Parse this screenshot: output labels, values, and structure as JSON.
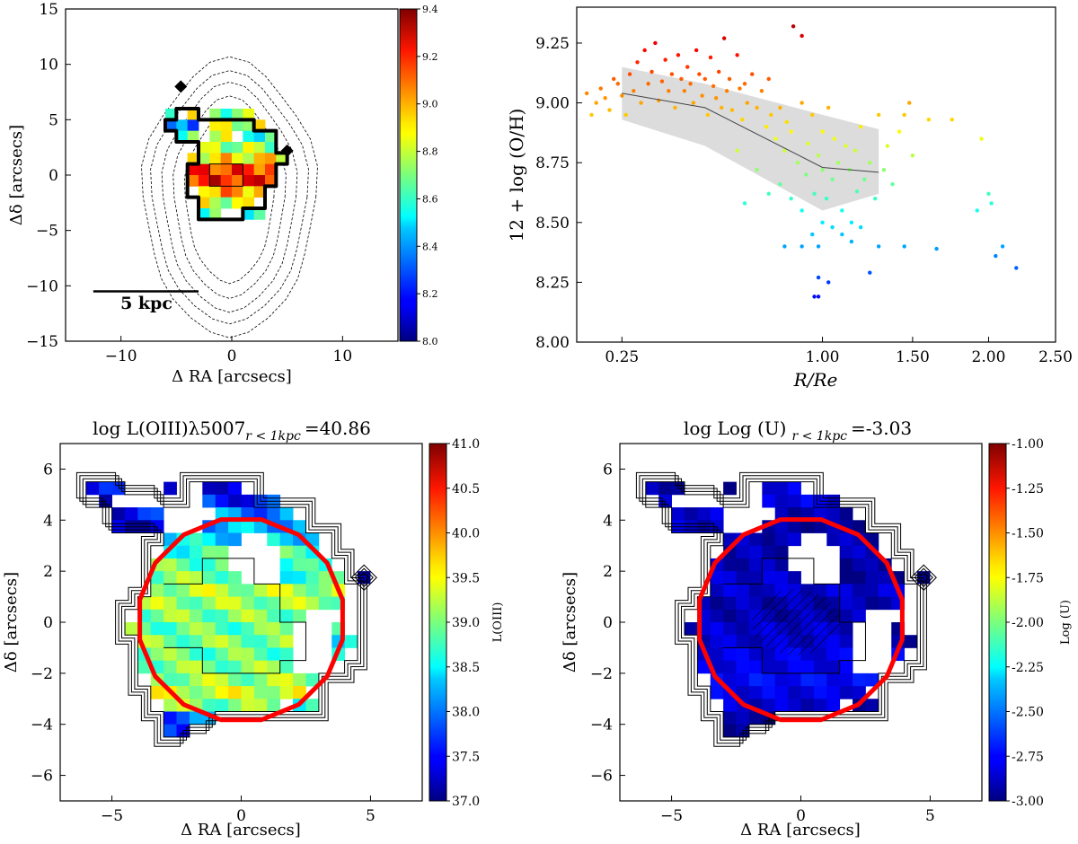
{
  "panels": {
    "map_oh": {
      "ylabel": "Δδ [arcsecs]",
      "xlabel": "Δ RA [arcsecs]",
      "scalebar_label": "5 kpc",
      "colorbar_ticks": [
        "8.0",
        "8.2",
        "8.4",
        "8.6",
        "8.8",
        "9.0",
        "9.2",
        "9.4"
      ]
    },
    "scatter": {
      "ylabel": "12 + log (O/H)",
      "xlabel": "R/Re"
    },
    "map_oiii": {
      "title": "log  L(OIII)λ5007",
      "title_subscript": "r < 1kpc",
      "title_value": "=40.86",
      "ylabel": "Δδ [arcsecs]",
      "xlabel": "Δ RA [arcsecs]",
      "colorbar_label": "L(OIII)",
      "colorbar_ticks": [
        "37.0",
        "37.5",
        "38.0",
        "38.5",
        "39.0",
        "39.5",
        "40.0",
        "40.5",
        "41.0"
      ]
    },
    "map_u": {
      "title": "log  Log (U)",
      "title_subscript": "r < 1kpc",
      "title_value": "=-3.03",
      "ylabel": "Δδ [arcsecs]",
      "xlabel": "Δ RA [arcsecs]",
      "colorbar_label": "Log (U)",
      "colorbar_ticks": [
        "-3.00",
        "-2.75",
        "-2.50",
        "-2.25",
        "-2.00",
        "-1.75",
        "-1.50",
        "-1.25",
        "-1.00"
      ]
    }
  },
  "chart_data": [
    {
      "type": "heatmap",
      "panel": "map_oh",
      "xlabel": "Δ RA [arcsecs]",
      "ylabel": "Δδ [arcsecs]",
      "xlim": [
        -15,
        15
      ],
      "ylim": [
        -15,
        15
      ],
      "xticks": [
        -10,
        0,
        10
      ],
      "yticks": [
        -15,
        -10,
        -5,
        0,
        5,
        10,
        15
      ],
      "colormap": "jet",
      "clim": [
        8.0,
        9.4
      ],
      "scalebar": {
        "x": [
          -12.5,
          -3
        ],
        "y": -10.5,
        "label": "5 kpc"
      },
      "map_rows": [
        {
          "y": 5.5,
          "segments": [
            [
              -6,
              -5,
              8.5
            ],
            [
              -4,
              -3,
              9.0
            ],
            [
              -2,
              2,
              8.7
            ]
          ]
        },
        {
          "y": 4.5,
          "segments": [
            [
              -6,
              -3,
              8.3
            ],
            [
              -2,
              3,
              8.8
            ]
          ]
        },
        {
          "y": 3.5,
          "segments": [
            [
              -5,
              -3,
              8.6
            ],
            [
              -2,
              0,
              8.9
            ],
            [
              1,
              4,
              8.6
            ]
          ]
        },
        {
          "y": 2.5,
          "segments": [
            [
              -3,
              4,
              8.75
            ]
          ]
        },
        {
          "y": 1.5,
          "segments": [
            [
              -4,
              5,
              8.9
            ]
          ]
        },
        {
          "y": 0.5,
          "segments": [
            [
              -4,
              4,
              9.15
            ]
          ]
        },
        {
          "y": -0.5,
          "segments": [
            [
              -4,
              4,
              9.2
            ]
          ]
        },
        {
          "y": -1.5,
          "segments": [
            [
              -3,
              3,
              9.0
            ]
          ]
        },
        {
          "y": -2.5,
          "segments": [
            [
              -3,
              2,
              8.8
            ]
          ]
        },
        {
          "y": -3.5,
          "segments": [
            [
              -3,
              -1,
              8.6
            ],
            [
              1,
              3,
              8.5
            ]
          ]
        }
      ],
      "dashed_contour_half_widths": [
        [
          4.0,
          7.5
        ],
        [
          5.0,
          8.8
        ],
        [
          6.0,
          10.0
        ],
        [
          7.0,
          11.0
        ],
        [
          7.8,
          12.2
        ]
      ]
    },
    {
      "type": "scatter",
      "panel": "scatter",
      "xlabel": "R/Re",
      "ylabel": "12 + log (O/H)",
      "xscale": "sqrt",
      "xlim": [
        0.15,
        2.5
      ],
      "ylim": [
        8.0,
        9.4
      ],
      "xticks": [
        0.25,
        1.0,
        1.5,
        2.0,
        2.5
      ],
      "xtick_labels": [
        "0.25",
        "1.00",
        "1.50",
        "2.00",
        "2.50"
      ],
      "yticks": [
        8.0,
        8.25,
        8.5,
        8.75,
        9.0,
        9.25
      ],
      "ytick_labels": [
        "8.00",
        "8.25",
        "8.50",
        "8.75",
        "9.00",
        "9.25"
      ],
      "colormap": "jet",
      "clim": [
        8.0,
        9.4
      ],
      "points": [
        [
          0.17,
          9.04
        ],
        [
          0.18,
          8.95
        ],
        [
          0.19,
          9.0
        ],
        [
          0.2,
          9.06
        ],
        [
          0.21,
          9.02
        ],
        [
          0.22,
          8.97
        ],
        [
          0.23,
          9.1
        ],
        [
          0.24,
          9.08
        ],
        [
          0.25,
          9.03
        ],
        [
          0.26,
          8.95
        ],
        [
          0.27,
          9.12
        ],
        [
          0.28,
          9.05
        ],
        [
          0.29,
          9.17
        ],
        [
          0.3,
          9.0
        ],
        [
          0.31,
          9.22
        ],
        [
          0.32,
          9.08
        ],
        [
          0.33,
          9.13
        ],
        [
          0.34,
          9.25
        ],
        [
          0.35,
          9.01
        ],
        [
          0.36,
          9.09
        ],
        [
          0.37,
          9.18
        ],
        [
          0.38,
          9.05
        ],
        [
          0.39,
          9.12
        ],
        [
          0.4,
          8.98
        ],
        [
          0.41,
          9.2
        ],
        [
          0.42,
          9.1
        ],
        [
          0.43,
          9.05
        ],
        [
          0.44,
          9.15
        ],
        [
          0.45,
          9.08
        ],
        [
          0.46,
          9.0
        ],
        [
          0.47,
          9.22
        ],
        [
          0.48,
          9.12
        ],
        [
          0.49,
          9.03
        ],
        [
          0.5,
          9.1
        ],
        [
          0.51,
          8.95
        ],
        [
          0.52,
          9.19
        ],
        [
          0.53,
          9.07
        ],
        [
          0.54,
          9.02
        ],
        [
          0.55,
          9.13
        ],
        [
          0.56,
          8.98
        ],
        [
          0.57,
          9.27
        ],
        [
          0.58,
          9.05
        ],
        [
          0.59,
          9.1
        ],
        [
          0.6,
          8.97
        ],
        [
          0.62,
          9.2
        ],
        [
          0.63,
          9.06
        ],
        [
          0.64,
          8.93
        ],
        [
          0.65,
          9.08
        ],
        [
          0.66,
          9.0
        ],
        [
          0.68,
          9.12
        ],
        [
          0.7,
          8.98
        ],
        [
          0.72,
          9.05
        ],
        [
          0.74,
          8.9
        ],
        [
          0.75,
          9.1
        ],
        [
          0.76,
          8.95
        ],
        [
          0.78,
          8.85
        ],
        [
          0.8,
          8.98
        ],
        [
          0.82,
          8.8
        ],
        [
          0.83,
          8.92
        ],
        [
          0.85,
          8.88
        ],
        [
          0.86,
          9.32
        ],
        [
          0.88,
          8.75
        ],
        [
          0.9,
          9.0
        ],
        [
          0.9,
          9.28
        ],
        [
          0.92,
          8.7
        ],
        [
          0.93,
          8.83
        ],
        [
          0.95,
          8.95
        ],
        [
          0.96,
          8.62
        ],
        [
          0.98,
          8.78
        ],
        [
          1.0,
          8.72
        ],
        [
          1.0,
          8.88
        ],
        [
          1.02,
          8.6
        ],
        [
          1.03,
          8.98
        ],
        [
          1.05,
          8.68
        ],
        [
          1.06,
          8.85
        ],
        [
          1.08,
          8.75
        ],
        [
          1.1,
          8.55
        ],
        [
          1.12,
          8.82
        ],
        [
          1.14,
          8.72
        ],
        [
          1.15,
          8.5
        ],
        [
          1.17,
          8.8
        ],
        [
          1.18,
          8.63
        ],
        [
          1.2,
          8.9
        ],
        [
          1.22,
          8.68
        ],
        [
          1.25,
          8.75
        ],
        [
          1.28,
          8.6
        ],
        [
          1.3,
          8.95
        ],
        [
          1.33,
          8.72
        ],
        [
          1.35,
          8.82
        ],
        [
          1.38,
          8.66
        ],
        [
          1.42,
          8.88
        ],
        [
          1.45,
          8.95
        ],
        [
          1.48,
          9.0
        ],
        [
          1.5,
          8.78
        ],
        [
          1.6,
          8.93
        ],
        [
          1.75,
          8.93
        ],
        [
          1.95,
          8.85
        ],
        [
          0.62,
          8.8
        ],
        [
          0.65,
          8.58
        ],
        [
          0.7,
          8.72
        ],
        [
          0.75,
          8.62
        ],
        [
          0.8,
          8.66
        ],
        [
          0.85,
          8.6
        ],
        [
          0.9,
          8.55
        ],
        [
          0.95,
          8.45
        ],
        [
          1.0,
          8.5
        ],
        [
          1.05,
          8.48
        ],
        [
          1.1,
          8.45
        ],
        [
          1.15,
          8.42
        ],
        [
          1.2,
          8.48
        ],
        [
          0.82,
          8.4
        ],
        [
          0.9,
          8.4
        ],
        [
          0.98,
          8.4
        ],
        [
          1.3,
          8.4
        ],
        [
          1.45,
          8.4
        ],
        [
          1.65,
          8.39
        ],
        [
          1.92,
          8.55
        ],
        [
          2.0,
          8.62
        ],
        [
          2.02,
          8.58
        ],
        [
          2.1,
          8.4
        ],
        [
          2.05,
          8.36
        ],
        [
          2.2,
          8.31
        ],
        [
          1.25,
          8.29
        ],
        [
          0.98,
          8.27
        ],
        [
          1.03,
          8.25
        ],
        [
          0.96,
          8.19
        ],
        [
          0.98,
          8.19
        ]
      ],
      "median_line": {
        "x": [
          0.25,
          0.5,
          1.0,
          1.3
        ],
        "y": [
          9.04,
          8.98,
          8.73,
          8.71
        ]
      },
      "band": {
        "x": [
          0.25,
          0.5,
          1.0,
          1.3
        ],
        "lower": [
          8.93,
          8.82,
          8.55,
          8.62
        ],
        "upper": [
          9.15,
          9.08,
          8.95,
          8.89
        ]
      }
    },
    {
      "type": "heatmap",
      "panel": "map_oiii",
      "title": "log  L(OIII)λ5007 r < 1kpc =40.86",
      "xlabel": "Δ RA [arcsecs]",
      "ylabel": "Δδ [arcsecs]",
      "colorbar_label": "L(OIII)",
      "xlim": [
        -7,
        7
      ],
      "ylim": [
        -7,
        7
      ],
      "xticks": [
        -5,
        0,
        5
      ],
      "yticks": [
        -6,
        -4,
        -2,
        0,
        2,
        4,
        6
      ],
      "colormap": "jet",
      "clim": [
        37.0,
        41.0
      ],
      "value_field": "oiii"
    },
    {
      "type": "heatmap",
      "panel": "map_u",
      "title": "log  Log (U) r < 1kpc =-3.03",
      "xlabel": "Δ RA [arcsecs]",
      "ylabel": "Δδ [arcsecs]",
      "colorbar_label": "Log (U)",
      "xlim": [
        -7,
        7
      ],
      "ylim": [
        -7,
        7
      ],
      "xticks": [
        -5,
        0,
        5
      ],
      "yticks": [
        -6,
        -4,
        -2,
        0,
        2,
        4,
        6
      ],
      "colormap": "jet",
      "clim": [
        -3.0,
        -1.0
      ],
      "value_field": "logu"
    }
  ],
  "pixel_map": {
    "cell_size_arcsec": 0.5,
    "rows": [
      {
        "y": 5.25,
        "segments": [
          [
            -6.0,
            -4.5,
            37.4,
            -2.9
          ],
          [
            -3.0,
            -2.5,
            37.1,
            -2.95
          ],
          [
            -1.5,
            0.0,
            37.5,
            -2.8
          ]
        ]
      },
      {
        "y": 4.75,
        "segments": [
          [
            -5.5,
            -5.0,
            37.4,
            -2.85
          ],
          [
            -1.5,
            1.5,
            37.6,
            -2.8
          ]
        ]
      },
      {
        "y": 4.25,
        "segments": [
          [
            -5.0,
            -3.0,
            37.5,
            -2.85
          ],
          [
            -1.0,
            2.0,
            38.0,
            -2.9
          ]
        ]
      },
      {
        "y": 3.75,
        "segments": [
          [
            -5.0,
            -3.0,
            37.4,
            -2.85
          ],
          [
            -1.5,
            2.5,
            38.2,
            -2.95
          ]
        ]
      },
      {
        "y": 3.25,
        "segments": [
          [
            -3.0,
            3.0,
            38.4,
            -2.9
          ]
        ]
      },
      {
        "y": 2.75,
        "segments": [
          [
            -3.0,
            3.0,
            38.7,
            -2.9
          ]
        ]
      },
      {
        "y": 2.25,
        "segments": [
          [
            -3.5,
            0.5,
            38.9,
            -2.9
          ],
          [
            1.5,
            3.5,
            38.6,
            -2.95
          ]
        ]
      },
      {
        "y": 1.75,
        "segments": [
          [
            -3.5,
            0.5,
            39.0,
            -2.85
          ],
          [
            1.5,
            4.0,
            38.7,
            -2.95
          ]
        ]
      },
      {
        "y": 1.25,
        "segments": [
          [
            -3.5,
            4.0,
            39.2,
            -2.85
          ]
        ]
      },
      {
        "y": 0.75,
        "segments": [
          [
            -4.0,
            4.0,
            39.1,
            -2.9
          ]
        ]
      },
      {
        "y": 0.25,
        "segments": [
          [
            -4.0,
            2.5,
            39.0,
            -2.9
          ]
        ]
      },
      {
        "y": -0.25,
        "segments": [
          [
            -4.5,
            2.5,
            38.9,
            -2.85
          ],
          [
            3.5,
            4.0,
            38.5,
            -2.9
          ]
        ]
      },
      {
        "y": -0.75,
        "segments": [
          [
            -4.0,
            3.0,
            39.0,
            -2.85
          ],
          [
            3.5,
            4.5,
            38.4,
            -2.9
          ]
        ]
      },
      {
        "y": -1.25,
        "segments": [
          [
            -4.0,
            4.0,
            38.9,
            -2.8
          ]
        ]
      },
      {
        "y": -1.75,
        "segments": [
          [
            -4.0,
            3.0,
            39.0,
            -2.8
          ]
        ]
      },
      {
        "y": -2.25,
        "segments": [
          [
            -3.5,
            3.0,
            39.1,
            -2.75
          ]
        ]
      },
      {
        "y": -2.75,
        "segments": [
          [
            -3.5,
            2.5,
            39.3,
            -2.8
          ]
        ]
      },
      {
        "y": -3.25,
        "segments": [
          [
            -3.0,
            1.5,
            39.0,
            -2.85
          ],
          [
            2.0,
            3.0,
            38.6,
            -2.9
          ]
        ]
      },
      {
        "y": -3.75,
        "segments": [
          [
            -3.0,
            -1.0,
            37.9,
            -2.95
          ]
        ]
      },
      {
        "y": -4.25,
        "segments": [
          [
            -3.0,
            -2.0,
            37.8,
            -2.95
          ]
        ]
      }
    ],
    "holes": [
      [
        0.5,
        2.5,
        1.0
      ],
      [
        2.7,
        -1.0,
        0.9
      ],
      [
        -1.5,
        0.5,
        0.3
      ]
    ],
    "isolated_cells": [
      [
        4.75,
        1.75,
        37.2,
        -2.95
      ]
    ],
    "cutoff_circle_radius": 4.0
  }
}
